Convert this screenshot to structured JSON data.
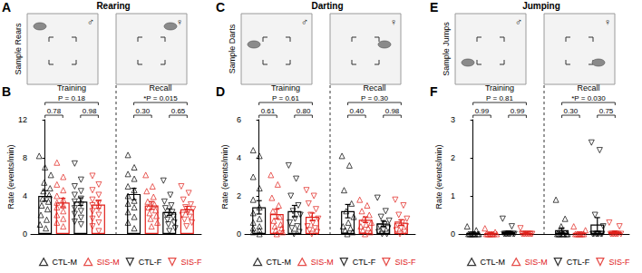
{
  "chart_data": [
    {
      "type": "bar",
      "annotations": [
        "B"
      ],
      "ylabel": "Rate (events/min)",
      "categories": [
        "Training",
        "Recall"
      ],
      "ylim": [
        0,
        12
      ],
      "yticks": [
        0,
        4,
        8,
        12
      ],
      "grid": false,
      "legend": "bottom",
      "tick_labels": "y",
      "series": [
        {
          "name": "CTL-M",
          "color": "#000000",
          "marker": "triangle-up",
          "values": [
            4.0,
            4.2
          ],
          "errors": [
            0.55,
            0.6
          ],
          "points": [
            [
              8.2,
              7.0,
              6.2,
              5.4,
              4.8,
              4.5,
              4.1,
              3.7,
              3.4,
              3.0,
              2.6,
              2.0,
              1.5,
              1.0,
              0.6
            ],
            [
              8.3,
              7.0,
              6.3,
              5.8,
              5.0,
              4.6,
              4.0,
              3.5,
              3.2,
              2.8,
              2.3,
              1.8,
              1.2,
              0.6
            ]
          ]
        },
        {
          "name": "SIS-M",
          "color": "#e0201b",
          "marker": "triangle-up",
          "values": [
            3.3,
            3.0
          ],
          "errors": [
            0.45,
            0.4
          ],
          "points": [
            [
              7.5,
              6.0,
              5.2,
              4.6,
              4.0,
              3.6,
              3.3,
              3.0,
              2.8,
              2.4,
              2.0,
              1.6,
              1.2,
              0.8
            ],
            [
              6.2,
              5.0,
              4.5,
              3.9,
              3.4,
              3.1,
              2.8,
              2.5,
              2.2,
              1.9,
              1.6,
              1.2,
              0.8
            ]
          ]
        },
        {
          "name": "CTL-F",
          "color": "#000000",
          "marker": "triangle-down",
          "values": [
            3.4,
            2.3
          ],
          "errors": [
            0.4,
            0.35
          ],
          "points": [
            [
              7.4,
              5.7,
              5.0,
              4.5,
              4.1,
              3.7,
              3.4,
              3.1,
              2.7,
              2.4,
              2.1,
              1.7,
              1.3,
              1.0
            ],
            [
              5.6,
              4.1,
              3.4,
              3.0,
              2.7,
              2.3,
              2.0,
              1.8,
              1.5,
              1.2,
              1.0,
              0.6,
              0.3
            ]
          ]
        },
        {
          "name": "SIS-F",
          "color": "#e0201b",
          "marker": "triangle-down",
          "values": [
            3.1,
            2.6
          ],
          "errors": [
            0.4,
            0.3
          ],
          "points": [
            [
              6.1,
              5.2,
              4.6,
              4.1,
              3.6,
              3.3,
              3.0,
              2.7,
              2.4,
              2.0,
              1.6,
              1.2,
              0.8,
              0.3
            ],
            [
              5.0,
              4.3,
              3.6,
              3.1,
              2.8,
              2.6,
              2.3,
              2.0,
              1.8,
              1.5,
              1.2,
              0.8
            ]
          ]
        }
      ],
      "comparisons": [
        {
          "category": "Training",
          "series": [
            "CTL-M",
            "SIS-F"
          ],
          "label": "P = 0.18"
        },
        {
          "category": "Training",
          "series": [
            "CTL-M",
            "SIS-M"
          ],
          "label": "0.78"
        },
        {
          "category": "Training",
          "series": [
            "CTL-F",
            "SIS-F"
          ],
          "label": "0.98"
        },
        {
          "category": "Recall",
          "series": [
            "CTL-M",
            "SIS-F"
          ],
          "label": "*P = 0.015"
        },
        {
          "category": "Recall",
          "series": [
            "CTL-M",
            "SIS-M"
          ],
          "label": "0.30"
        },
        {
          "category": "Recall",
          "series": [
            "CTL-F",
            "SIS-F"
          ],
          "label": "0.65"
        }
      ]
    },
    {
      "type": "bar",
      "annotations": [
        "D"
      ],
      "ylabel": "Rate (events/min)",
      "categories": [
        "Training",
        "Recall"
      ],
      "ylim": [
        0,
        6
      ],
      "yticks": [
        0,
        2,
        4,
        6
      ],
      "grid": false,
      "legend": "bottom",
      "tick_labels": "y",
      "series": [
        {
          "name": "CTL-M",
          "color": "#000000",
          "marker": "triangle-up",
          "values": [
            1.4,
            1.2
          ],
          "errors": [
            0.35,
            0.35
          ],
          "points": [
            [
              4.4,
              4.1,
              3.0,
              2.4,
              1.8,
              1.4,
              1.1,
              0.8,
              0.6,
              0.4,
              0.3,
              0.2,
              0.1,
              0
            ],
            [
              4.1,
              3.6,
              2.3,
              1.6,
              1.2,
              0.9,
              0.6,
              0.4,
              0.3,
              0.2,
              0.1,
              0
            ]
          ]
        },
        {
          "name": "SIS-M",
          "color": "#e0201b",
          "marker": "triangle-up",
          "values": [
            1.05,
            0.75
          ],
          "errors": [
            0.25,
            0.15
          ],
          "points": [
            [
              3.1,
              2.6,
              1.9,
              1.5,
              1.2,
              0.9,
              0.7,
              0.5,
              0.4,
              0.3,
              0.2,
              0.1,
              0
            ],
            [
              1.8,
              1.5,
              1.2,
              1.0,
              0.8,
              0.6,
              0.5,
              0.4,
              0.3,
              0.2,
              0.1,
              0
            ]
          ]
        },
        {
          "name": "CTL-F",
          "color": "#000000",
          "marker": "triangle-down",
          "values": [
            1.2,
            0.55
          ],
          "errors": [
            0.3,
            0.15
          ],
          "points": [
            [
              3.6,
              2.9,
              2.0,
              1.5,
              1.2,
              1.0,
              0.8,
              0.6,
              0.4,
              0.3,
              0.1,
              0
            ],
            [
              1.9,
              1.2,
              0.9,
              0.7,
              0.5,
              0.4,
              0.3,
              0.2,
              0.1,
              0,
              0
            ]
          ]
        },
        {
          "name": "SIS-F",
          "color": "#e0201b",
          "marker": "triangle-down",
          "values": [
            0.9,
            0.6
          ],
          "errors": [
            0.2,
            0.15
          ],
          "points": [
            [
              2.3,
              2.0,
              1.6,
              1.3,
              1.0,
              0.8,
              0.6,
              0.4,
              0.3,
              0.2,
              0.1,
              0
            ],
            [
              1.8,
              1.5,
              1.0,
              0.8,
              0.6,
              0.5,
              0.4,
              0.3,
              0.2,
              0.1,
              0
            ]
          ]
        }
      ],
      "comparisons": [
        {
          "category": "Training",
          "series": [
            "CTL-M",
            "SIS-F"
          ],
          "label": "P = 0.61"
        },
        {
          "category": "Training",
          "series": [
            "CTL-M",
            "SIS-M"
          ],
          "label": "0.61"
        },
        {
          "category": "Training",
          "series": [
            "CTL-F",
            "SIS-F"
          ],
          "label": "0.80"
        },
        {
          "category": "Recall",
          "series": [
            "CTL-M",
            "SIS-F"
          ],
          "label": "P = 0.30"
        },
        {
          "category": "Recall",
          "series": [
            "CTL-M",
            "SIS-M"
          ],
          "label": "0.40"
        },
        {
          "category": "Recall",
          "series": [
            "CTL-F",
            "SIS-F"
          ],
          "label": "0.98"
        }
      ]
    },
    {
      "type": "bar",
      "annotations": [
        "F"
      ],
      "ylabel": "Rate (events/min)",
      "categories": [
        "Training",
        "Recall"
      ],
      "ylim": [
        0,
        3
      ],
      "yticks": [
        0,
        1,
        2,
        3
      ],
      "grid": false,
      "legend": "bottom",
      "tick_labels": "y",
      "series": [
        {
          "name": "CTL-M",
          "color": "#000000",
          "marker": "triangle-up",
          "values": [
            0.03,
            0.1
          ],
          "errors": [
            0.02,
            0.06
          ],
          "points": [
            [
              0.2,
              0.1,
              0,
              0,
              0,
              0,
              0,
              0,
              0,
              0
            ],
            [
              0.9,
              0.4,
              0.2,
              0,
              0,
              0,
              0,
              0,
              0,
              0
            ]
          ]
        },
        {
          "name": "SIS-M",
          "color": "#e0201b",
          "marker": "triangle-up",
          "values": [
            0.02,
            0.03
          ],
          "errors": [
            0.02,
            0.02
          ],
          "points": [
            [
              0.15,
              0.05,
              0,
              0,
              0,
              0,
              0,
              0,
              0
            ],
            [
              0.2,
              0.1,
              0,
              0,
              0,
              0,
              0,
              0
            ]
          ]
        },
        {
          "name": "CTL-F",
          "color": "#000000",
          "marker": "triangle-down",
          "values": [
            0.05,
            0.25
          ],
          "errors": [
            0.03,
            0.18
          ],
          "points": [
            [
              0.4,
              0.2,
              0,
              0,
              0,
              0,
              0,
              0,
              0,
              0
            ],
            [
              2.4,
              2.2,
              0.5,
              0.2,
              0,
              0,
              0,
              0,
              0,
              0,
              0
            ]
          ]
        },
        {
          "name": "SIS-F",
          "color": "#e0201b",
          "marker": "triangle-down",
          "values": [
            0.02,
            0.05
          ],
          "errors": [
            0.02,
            0.03
          ],
          "points": [
            [
              0.15,
              0,
              0,
              0,
              0,
              0,
              0,
              0,
              0
            ],
            [
              0.3,
              0.2,
              0,
              0,
              0,
              0,
              0,
              0,
              0
            ]
          ]
        }
      ],
      "comparisons": [
        {
          "category": "Training",
          "series": [
            "CTL-M",
            "SIS-F"
          ],
          "label": "P = 0.81"
        },
        {
          "category": "Training",
          "series": [
            "CTL-M",
            "SIS-M"
          ],
          "label": "0.99"
        },
        {
          "category": "Training",
          "series": [
            "CTL-F",
            "SIS-F"
          ],
          "label": "0.99"
        },
        {
          "category": "Recall",
          "series": [
            "CTL-M",
            "SIS-F"
          ],
          "label": "*P = 0.030"
        },
        {
          "category": "Recall",
          "series": [
            "CTL-M",
            "SIS-M"
          ],
          "label": "0.30"
        },
        {
          "category": "Recall",
          "series": [
            "CTL-F",
            "SIS-F"
          ],
          "label": "0.75"
        }
      ]
    }
  ],
  "sample_panels": [
    {
      "annotations": [
        "A"
      ],
      "title": "Rearing",
      "label": "Sample Rears",
      "sexes": [
        "♂",
        "♀"
      ]
    },
    {
      "annotations": [
        "C"
      ],
      "title": "Darting",
      "label": "Sample Darts",
      "sexes": [
        "♂",
        "♀"
      ]
    },
    {
      "annotations": [
        "E"
      ],
      "title": "Jumping",
      "label": "Sample Jumps",
      "sexes": [
        "♂",
        "♀"
      ]
    }
  ]
}
